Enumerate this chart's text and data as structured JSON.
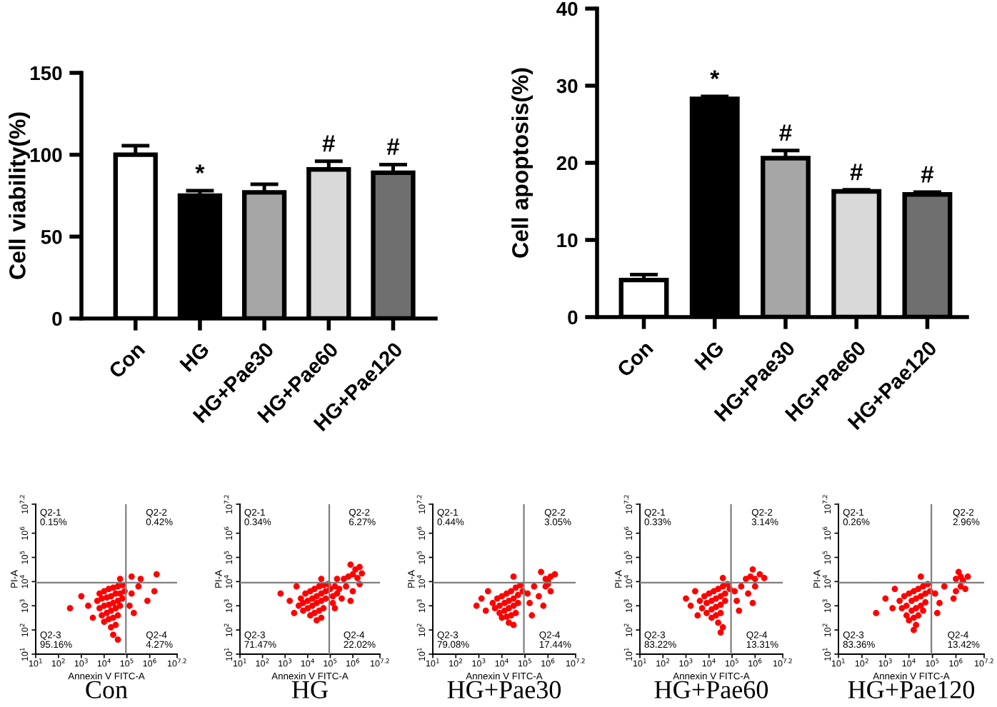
{
  "chart_data": [
    {
      "type": "bar",
      "ylabel": "Cell viability(%)",
      "categories": [
        "Con",
        "HG",
        "HG+Pae30",
        "HG+Pae60",
        "HG+Pae120"
      ],
      "values": [
        100,
        75,
        77,
        91,
        89
      ],
      "errors": [
        5.5,
        3,
        5,
        5,
        5
      ],
      "colors": [
        "#ffffff",
        "#000000",
        "#a6a6a6",
        "#d9d9d9",
        "#6f6f6f"
      ],
      "ylim": [
        0,
        150
      ],
      "yticks": [
        0,
        50,
        100,
        150
      ],
      "annotations": [
        {
          "text": "*",
          "x": "HG",
          "y": 75
        },
        {
          "text": "#",
          "x": "HG+Pae60",
          "y": 91
        },
        {
          "text": "#",
          "x": "HG+Pae120",
          "y": 89
        }
      ]
    },
    {
      "type": "bar",
      "ylabel": "Cell apoptosis(%)",
      "categories": [
        "Con",
        "HG",
        "HG+Pae30",
        "HG+Pae60",
        "HG+Pae120"
      ],
      "values": [
        4.8,
        28.3,
        20.6,
        16.3,
        15.9
      ],
      "errors": [
        0.7,
        0.3,
        1.0,
        0.2,
        0.3
      ],
      "colors": [
        "#ffffff",
        "#000000",
        "#a6a6a6",
        "#d9d9d9",
        "#6f6f6f"
      ],
      "ylim": [
        0,
        40
      ],
      "yticks": [
        0,
        10,
        20,
        30,
        40
      ],
      "annotations": [
        {
          "text": "*",
          "x": "HG",
          "y": 28.3
        },
        {
          "text": "#",
          "x": "HG+Pae30",
          "y": 20.6
        },
        {
          "text": "#",
          "x": "HG+Pae60",
          "y": 16.3
        },
        {
          "text": "#",
          "x": "HG+Pae120",
          "y": 15.9
        }
      ]
    },
    {
      "type": "scatter",
      "title": "Con",
      "xlabel": "Annexin V FITC-A",
      "ylabel": "PI-A",
      "log": "xy",
      "marker": "circle",
      "xlim": [
        10,
        15848932
      ],
      "ylim": [
        10,
        15848932
      ],
      "xticks": [
        {
          "value": 10,
          "label": "10$^{1}$"
        },
        {
          "value": 100,
          "label": "10$^{2}$"
        },
        {
          "value": 1000,
          "label": "10$^{3}$"
        },
        {
          "value": 10000,
          "label": "10$^{4}$"
        },
        {
          "value": 100000,
          "label": "10$^{5}$"
        },
        {
          "value": 1000000,
          "label": "10$^{6}$"
        },
        {
          "value": 15848932,
          "label": "10$^{7.2}$"
        }
      ],
      "yticks": [
        {
          "value": 10,
          "label": "10$^{1}$"
        },
        {
          "value": 100,
          "label": "10$^{2}$"
        },
        {
          "value": 1000,
          "label": "10$^{3}$"
        },
        {
          "value": 10000,
          "label": "10$^{4}$"
        },
        {
          "value": 100000,
          "label": "10$^{5}$"
        },
        {
          "value": 1000000,
          "label": "10$^{6}$"
        },
        {
          "value": 15848932,
          "label": "10$^{7.2}$"
        }
      ],
      "ref_lines": [
        {
          "axis": "x",
          "value": 90000,
          "color": "#7f7f7f"
        },
        {
          "axis": "y",
          "value": 9000,
          "color": "#7f7f7f"
        }
      ],
      "annotations": [
        "Q2-1\n0.15%",
        "Q2-2\n0.42%",
        "Q2-3\n95.16%",
        "Q2-4\n4.27%"
      ],
      "series": [
        {
          "color": "#ff0000",
          "x": [
            6300.0,
            10000.0,
            16000.0,
            25000.0,
            40000.0,
            63000.0,
            5000.0,
            7900.0,
            13000.0,
            20000.0,
            32000.0,
            50000.0,
            79000.0,
            6300.0,
            10000.0,
            16000.0,
            25000.0,
            40000.0,
            63000.0,
            7900.0,
            13000.0,
            20000.0,
            32000.0,
            50000.0,
            10000.0,
            16000.0,
            25000.0,
            40000.0,
            20000.0,
            32000.0,
            25000.0,
            40000.0,
            2000.0,
            3200.0,
            1000.0,
            320,
            160000.0,
            320000.0,
            790000.0,
            200000.0,
            1600000.0,
            130000.0,
            160000.0,
            400000.0,
            2000000.0,
            50000.0
          ],
          "values": [
            3200.0,
            4000.0,
            5000.0,
            5600.0,
            6300.0,
            7100.0,
            1600.0,
            2000.0,
            2200.0,
            2500.0,
            3200.0,
            3200.0,
            4000.0,
            790,
            1000.0,
            1100.0,
            1300.0,
            1600.0,
            2000.0,
            400,
            500,
            630,
            790,
            1000.0,
            220,
            280,
            320,
            400,
            130,
            160,
            63,
            40,
            1000.0,
            320,
            2500.0,
            790,
            3200.0,
            6300.0,
            1600.0,
            500,
            4000.0,
            1000.0,
            16000.0,
            13000.0,
            20000.0,
            13000.0
          ]
        }
      ]
    },
    {
      "type": "scatter",
      "title": "HG",
      "xlabel": "Annexin V FITC-A",
      "ylabel": "PI-A",
      "log": "xy",
      "marker": "circle",
      "xlim": [
        10,
        15848932
      ],
      "ylim": [
        10,
        15848932
      ],
      "xticks": [
        {
          "value": 10,
          "label": "10$^{1}$"
        },
        {
          "value": 100,
          "label": "10$^{2}$"
        },
        {
          "value": 1000,
          "label": "10$^{3}$"
        },
        {
          "value": 10000,
          "label": "10$^{4}$"
        },
        {
          "value": 100000,
          "label": "10$^{5}$"
        },
        {
          "value": 1000000,
          "label": "10$^{6}$"
        },
        {
          "value": 15848932,
          "label": "10$^{7.2}$"
        }
      ],
      "yticks": [
        {
          "value": 10,
          "label": "10$^{1}$"
        },
        {
          "value": 100,
          "label": "10$^{2}$"
        },
        {
          "value": 1000,
          "label": "10$^{3}$"
        },
        {
          "value": 10000,
          "label": "10$^{4}$"
        },
        {
          "value": 100000,
          "label": "10$^{5}$"
        },
        {
          "value": 1000000,
          "label": "10$^{6}$"
        },
        {
          "value": 15848932,
          "label": "10$^{7.2}$"
        }
      ],
      "ref_lines": [
        {
          "axis": "x",
          "value": 90000,
          "color": "#7f7f7f"
        },
        {
          "axis": "y",
          "value": 9000,
          "color": "#7f7f7f"
        }
      ],
      "annotations": [
        "Q2-1\n0.34%",
        "Q2-2\n6.27%",
        "Q2-3\n71.47%",
        "Q2-4\n22.02%"
      ],
      "series": [
        {
          "color": "#ff0000",
          "x": [
            5000.0,
            7900.0,
            13000.0,
            20000.0,
            32000.0,
            50000.0,
            79000.0,
            4000.0,
            6300.0,
            10000.0,
            16000.0,
            25000.0,
            40000.0,
            63000.0,
            6300.0,
            10000.0,
            16000.0,
            25000.0,
            40000.0,
            63000.0,
            13000.0,
            20000.0,
            32000.0,
            50000.0,
            25000.0,
            40000.0,
            1600.0,
            2500.0,
            630,
            3200.0,
            100000.0,
            130000.0,
            160000.0,
            200000.0,
            130000.0,
            250000.0,
            160000.0,
            320000.0,
            500000.0,
            1000000.0,
            2000000.0,
            790000.0,
            630000.0,
            1000000.0,
            1600000.0,
            1300000.0,
            2500000.0,
            400000.0,
            2000000.0,
            790000.0,
            200000.0,
            40000.0
          ],
          "values": [
            2000.0,
            3200.0,
            4000.0,
            5000.0,
            6300.0,
            7100.0,
            7900.0,
            1000.0,
            1300.0,
            1600.0,
            2000.0,
            2500.0,
            3200.0,
            4000.0,
            630,
            790,
            1000.0,
            1300.0,
            1600.0,
            2000.0,
            400,
            500,
            630,
            790,
            250,
            320,
            1600.0,
            500,
            3200.0,
            6300.0,
            5000.0,
            2500.0,
            6300.0,
            3200.0,
            1300.0,
            5000.0,
            790,
            2000.0,
            6300.0,
            4000.0,
            7900.0,
            1600.0,
            16000.0,
            20000.0,
            14000.0,
            32000.0,
            22000.0,
            13000.0,
            40000.0,
            50000.0,
            13000.0,
            13000.0
          ]
        }
      ]
    },
    {
      "type": "scatter",
      "title": "HG+Pae30",
      "xlabel": "Annexin V FITC-A",
      "ylabel": "PI-A",
      "log": "xy",
      "marker": "circle",
      "xlim": [
        10,
        15848932
      ],
      "ylim": [
        10,
        15848932
      ],
      "xticks": [
        {
          "value": 10,
          "label": "10$^{1}$"
        },
        {
          "value": 100,
          "label": "10$^{2}$"
        },
        {
          "value": 1000,
          "label": "10$^{3}$"
        },
        {
          "value": 10000,
          "label": "10$^{4}$"
        },
        {
          "value": 100000,
          "label": "10$^{5}$"
        },
        {
          "value": 1000000,
          "label": "10$^{6}$"
        },
        {
          "value": 15848932,
          "label": "10$^{7.2}$"
        }
      ],
      "yticks": [
        {
          "value": 10,
          "label": "10$^{1}$"
        },
        {
          "value": 100,
          "label": "10$^{2}$"
        },
        {
          "value": 1000,
          "label": "10$^{3}$"
        },
        {
          "value": 10000,
          "label": "10$^{4}$"
        },
        {
          "value": 100000,
          "label": "10$^{5}$"
        },
        {
          "value": 1000000,
          "label": "10$^{6}$"
        },
        {
          "value": 15848932,
          "label": "10$^{7.2}$"
        }
      ],
      "ref_lines": [
        {
          "axis": "x",
          "value": 90000,
          "color": "#7f7f7f"
        },
        {
          "axis": "y",
          "value": 9000,
          "color": "#7f7f7f"
        }
      ],
      "annotations": [
        "Q2-1\n0.44%",
        "Q2-2\n3.05%",
        "Q2-3\n79.08%",
        "Q2-4\n17.44%"
      ],
      "series": [
        {
          "color": "#ff0000",
          "x": [
            4000.0,
            6300.0,
            10000.0,
            16000.0,
            25000.0,
            40000.0,
            63000.0,
            5000.0,
            7900.0,
            13000.0,
            20000.0,
            32000.0,
            50000.0,
            79000.0,
            7900.0,
            13000.0,
            20000.0,
            32000.0,
            50000.0,
            10000.0,
            16000.0,
            25000.0,
            40000.0,
            20000.0,
            32000.0,
            1300.0,
            2000.0,
            2500.0,
            790,
            130000.0,
            160000.0,
            250000.0,
            400000.0,
            790000.0,
            1300000.0,
            1000000.0,
            200000.0,
            630000.0,
            790000.0,
            1300000.0,
            1000000.0,
            2000000.0,
            500000.0,
            32000.0
          ],
          "values": [
            1300.0,
            2000.0,
            2500.0,
            3200.0,
            4000.0,
            5600.0,
            7100.0,
            790,
            1000.0,
            1300.0,
            1600.0,
            2000.0,
            2800.0,
            4000.0,
            500,
            630,
            790,
            1000.0,
            1300.0,
            320,
            350,
            400,
            500,
            200,
            160,
            2000.0,
            630,
            4000.0,
            1000.0,
            3200.0,
            1300.0,
            6300.0,
            2500.0,
            6300.0,
            4000.0,
            7900.0,
            400,
            1000.0,
            13000.0,
            16000.0,
            11000.0,
            20000.0,
            25000.0,
            16000.0
          ]
        }
      ]
    },
    {
      "type": "scatter",
      "title": "HG+Pae60",
      "xlabel": "Annexin V FITC-A",
      "ylabel": "PI-A",
      "log": "xy",
      "marker": "circle",
      "xlim": [
        10,
        15848932
      ],
      "ylim": [
        10,
        15848932
      ],
      "xticks": [
        {
          "value": 10,
          "label": "10$^{1}$"
        },
        {
          "value": 100,
          "label": "10$^{2}$"
        },
        {
          "value": 1000,
          "label": "10$^{3}$"
        },
        {
          "value": 10000,
          "label": "10$^{4}$"
        },
        {
          "value": 100000,
          "label": "10$^{5}$"
        },
        {
          "value": 1000000,
          "label": "10$^{6}$"
        },
        {
          "value": 15848932,
          "label": "10$^{7.2}$"
        }
      ],
      "yticks": [
        {
          "value": 10,
          "label": "10$^{1}$"
        },
        {
          "value": 100,
          "label": "10$^{2}$"
        },
        {
          "value": 1000,
          "label": "10$^{3}$"
        },
        {
          "value": 10000,
          "label": "10$^{4}$"
        },
        {
          "value": 100000,
          "label": "10$^{5}$"
        },
        {
          "value": 1000000,
          "label": "10$^{6}$"
        },
        {
          "value": 15848932,
          "label": "10$^{7.2}$"
        }
      ],
      "ref_lines": [
        {
          "axis": "x",
          "value": 90000,
          "color": "#7f7f7f"
        },
        {
          "axis": "y",
          "value": 9000,
          "color": "#7f7f7f"
        }
      ],
      "annotations": [
        "Q2-1\n0.33%",
        "Q2-2\n3.14%",
        "Q2-3\n83.22%",
        "Q2-4\n13.31%"
      ],
      "series": [
        {
          "color": "#ff0000",
          "x": [
            4000.0,
            6300.0,
            10000.0,
            16000.0,
            25000.0,
            40000.0,
            63000.0,
            5000.0,
            7900.0,
            13000.0,
            20000.0,
            32000.0,
            50000.0,
            79000.0,
            7900.0,
            13000.0,
            20000.0,
            32000.0,
            50000.0,
            13000.0,
            20000.0,
            32000.0,
            25000.0,
            40000.0,
            32000.0,
            1600.0,
            2500.0,
            1000.0,
            3200.0,
            130000.0,
            160000.0,
            250000.0,
            500000.0,
            1000000.0,
            200000.0,
            790000.0,
            400000.0,
            630000.0,
            1000000.0,
            1600000.0,
            2500000.0,
            790000.0,
            40000.0
          ],
          "values": [
            1600.0,
            2500.0,
            3200.0,
            4000.0,
            5000.0,
            6300.0,
            7900.0,
            790,
            1300.0,
            1600.0,
            2000.0,
            2500.0,
            3200.0,
            5000.0,
            500,
            710,
            890,
            1100.0,
            1600.0,
            320,
            400,
            500,
            200,
            130,
            79,
            1000.0,
            4000.0,
            2000.0,
            400,
            4000.0,
            1600.0,
            6300.0,
            3200.0,
            6300.0,
            630,
            1300.0,
            13000.0,
            16000.0,
            13000.0,
            20000.0,
            14000.0,
            32000.0,
            14000.0
          ]
        }
      ]
    },
    {
      "type": "scatter",
      "title": "HG+Pae120",
      "xlabel": "Annexin V FITC-A",
      "ylabel": "PI-A",
      "log": "xy",
      "marker": "circle",
      "xlim": [
        10,
        15848932
      ],
      "ylim": [
        10,
        15848932
      ],
      "xticks": [
        {
          "value": 10,
          "label": "10$^{1}$"
        },
        {
          "value": 100,
          "label": "10$^{2}$"
        },
        {
          "value": 1000,
          "label": "10$^{3}$"
        },
        {
          "value": 10000,
          "label": "10$^{4}$"
        },
        {
          "value": 100000,
          "label": "10$^{5}$"
        },
        {
          "value": 1000000,
          "label": "10$^{6}$"
        },
        {
          "value": 15848932,
          "label": "10$^{7.2}$"
        }
      ],
      "yticks": [
        {
          "value": 10,
          "label": "10$^{1}$"
        },
        {
          "value": 100,
          "label": "10$^{2}$"
        },
        {
          "value": 1000,
          "label": "10$^{3}$"
        },
        {
          "value": 10000,
          "label": "10$^{4}$"
        },
        {
          "value": 100000,
          "label": "10$^{5}$"
        },
        {
          "value": 1000000,
          "label": "10$^{6}$"
        },
        {
          "value": 15848932,
          "label": "10$^{7.2}$"
        }
      ],
      "ref_lines": [
        {
          "axis": "x",
          "value": 90000,
          "color": "#7f7f7f"
        },
        {
          "axis": "y",
          "value": 9000,
          "color": "#7f7f7f"
        }
      ],
      "annotations": [
        "Q2-1\n0.26%",
        "Q2-2\n2.96%",
        "Q2-3\n83.36%",
        "Q2-4\n13.42%"
      ],
      "series": [
        {
          "color": "#ff0000",
          "x": [
            4000.0,
            6300.0,
            10000.0,
            16000.0,
            25000.0,
            40000.0,
            63000.0,
            5000.0,
            7900.0,
            13000.0,
            20000.0,
            32000.0,
            50000.0,
            79000.0,
            7900.0,
            13000.0,
            20000.0,
            32000.0,
            50000.0,
            10000.0,
            16000.0,
            25000.0,
            40000.0,
            20000.0,
            16000.0,
            1000.0,
            2000.0,
            400,
            2500.0,
            130000.0,
            200000.0,
            320000.0,
            1000000.0,
            1600000.0,
            2500000.0,
            790000.0,
            160000.0,
            1000000.0,
            1600000.0,
            2000000.0,
            1300000.0,
            3200000.0,
            32000.0
          ],
          "values": [
            1600.0,
            2500.0,
            3200.0,
            4000.0,
            5000.0,
            6300.0,
            7900.0,
            790,
            1000.0,
            1600.0,
            2000.0,
            2500.0,
            3200.0,
            4000.0,
            400,
            630,
            790,
            1000.0,
            1400.0,
            250,
            320,
            400,
            630,
            160,
            100,
            2000.0,
            790,
            500,
            5000.0,
            3200.0,
            1300.0,
            6300.0,
            4000.0,
            6300.0,
            5000.0,
            2000.0,
            500,
            13000.0,
            16000.0,
            11000.0,
            25000.0,
            16000.0,
            16000.0
          ]
        }
      ]
    }
  ]
}
